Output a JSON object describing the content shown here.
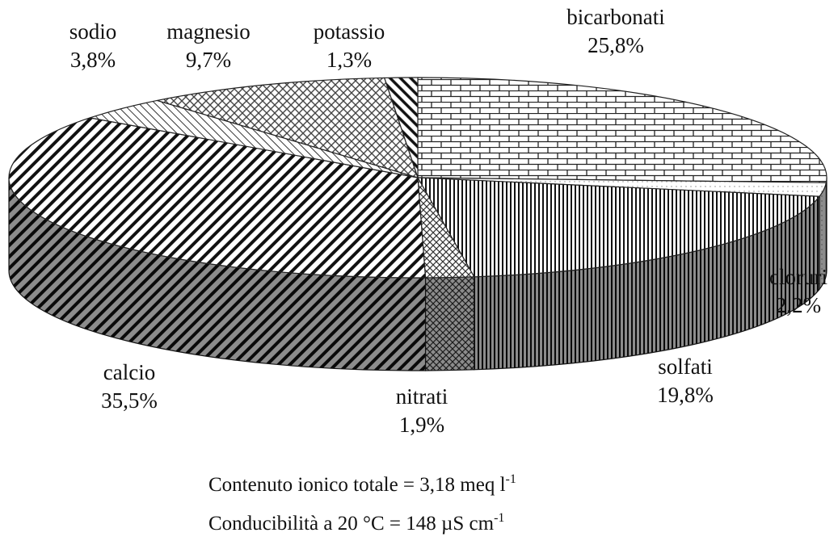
{
  "chart_data": {
    "type": "pie3d",
    "categories": [
      "bicarbonati",
      "cloruri",
      "solfati",
      "nitrati",
      "calcio",
      "sodio",
      "magnesio",
      "potassio"
    ],
    "values": [
      25.8,
      2.2,
      19.8,
      1.9,
      35.5,
      3.8,
      9.7,
      1.3
    ],
    "value_labels": [
      "25,8%",
      "2,2%",
      "19,8%",
      "1,9%",
      "35,5%",
      "3,8%",
      "9,7%",
      "1,3%"
    ],
    "annotations": [
      {
        "text": "Contenuto ionico totale = 3,18 meq l",
        "sup": "-1"
      },
      {
        "text": "Conducibilità a 20 °C = 148 µS cm",
        "sup": "-1"
      }
    ]
  }
}
